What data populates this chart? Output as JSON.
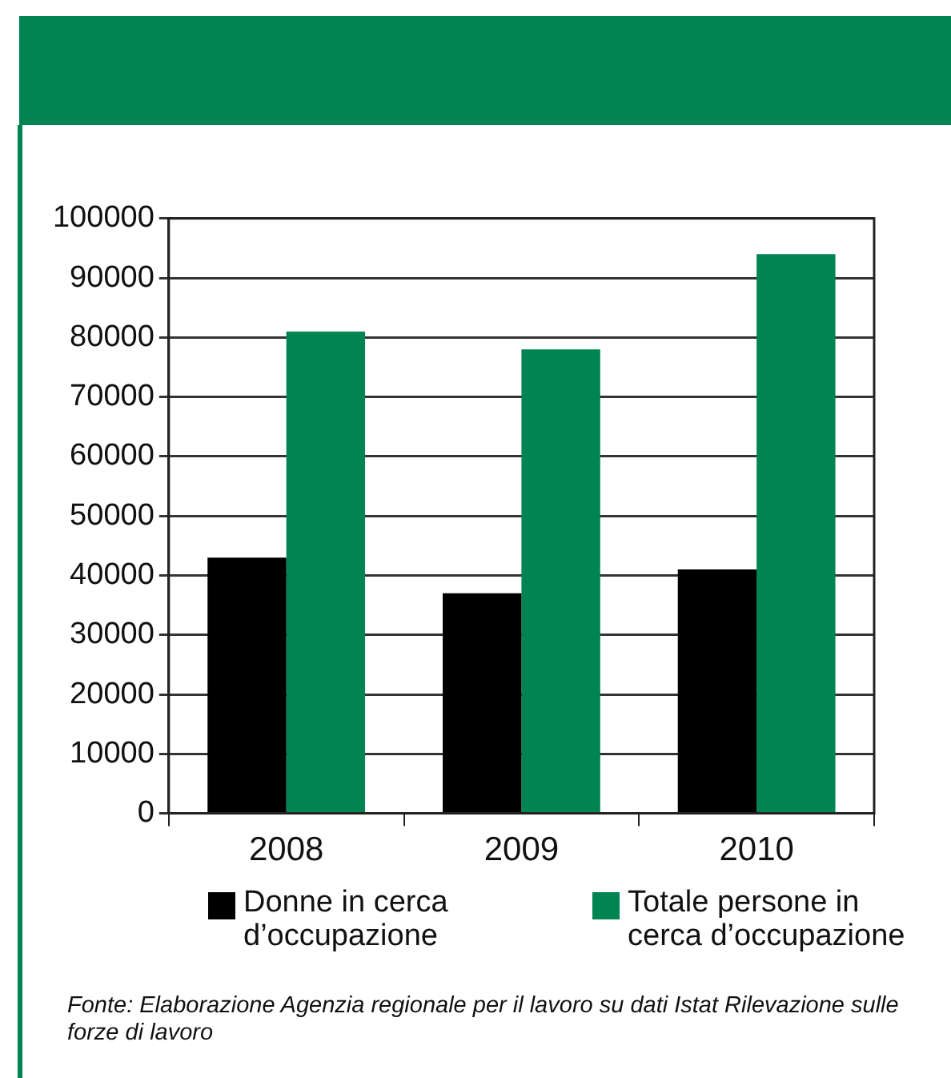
{
  "chart_data": {
    "type": "bar",
    "categories": [
      "2008",
      "2009",
      "2010"
    ],
    "series": [
      {
        "name": "Donne in cerca d’occupazione",
        "color": "#000000",
        "values": [
          43000,
          37000,
          41000
        ]
      },
      {
        "name": "Totale persone in cerca d’occupazione",
        "color": "#008452",
        "values": [
          81000,
          78000,
          94000
        ]
      }
    ],
    "ylim": [
      0,
      100000
    ],
    "yticks": [
      0,
      10000,
      20000,
      30000,
      40000,
      50000,
      60000,
      70000,
      80000,
      90000,
      100000
    ],
    "grid": "y",
    "legend": "bottom",
    "annotations": [
      "Fonte: Elaborazione Agenzia regionale per il lavoro su dati Istat Rilevazione sulle forze di lavoro"
    ]
  }
}
